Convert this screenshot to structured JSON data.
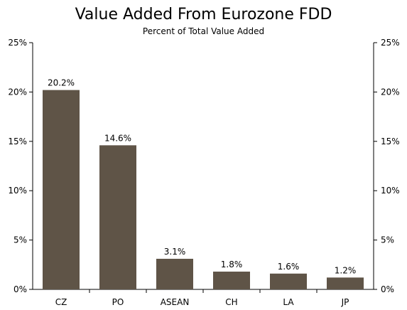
{
  "chart_data": {
    "type": "bar",
    "title": "Value Added From Eurozone FDD",
    "subtitle": "Percent of Total Value Added",
    "xlabel": "",
    "ylabel": "",
    "categories": [
      "CZ",
      "PO",
      "ASEAN",
      "CH",
      "LA",
      "JP"
    ],
    "values": [
      20.2,
      14.6,
      3.1,
      1.8,
      1.6,
      1.2
    ],
    "value_labels": [
      "20.2%",
      "14.6%",
      "3.1%",
      "1.8%",
      "1.6%",
      "1.2%"
    ],
    "ylim": [
      0,
      25
    ],
    "y_ticks": [
      0,
      5,
      10,
      15,
      20,
      25
    ],
    "y_tick_labels": [
      "0%",
      "5%",
      "10%",
      "15%",
      "20%",
      "25%"
    ],
    "right_axis": true,
    "grid": false,
    "bar_color": "#5f5447"
  }
}
